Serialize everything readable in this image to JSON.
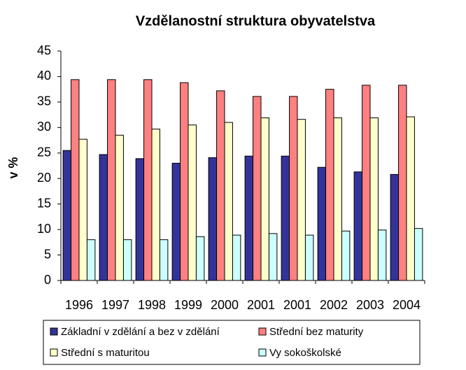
{
  "chart_data": {
    "type": "bar",
    "title": "Vzdělanostní struktura obyvatelstva",
    "y_label": "v %",
    "categories": [
      "1996",
      "1997",
      "1998",
      "1999",
      "2000",
      "2001",
      "2001",
      "2002",
      "2003",
      "2004"
    ],
    "series": [
      {
        "name": "Základní v zdělání a bez v zdělání",
        "color": "#333399",
        "values": [
          25.5,
          24.7,
          23.9,
          23.0,
          24.1,
          24.4,
          24.4,
          22.2,
          21.3,
          20.8
        ]
      },
      {
        "name": "Střední bez maturity",
        "color": "#ff8080",
        "values": [
          39.4,
          39.4,
          39.4,
          38.8,
          37.2,
          36.1,
          36.1,
          37.5,
          38.3,
          38.3
        ]
      },
      {
        "name": "Střední s maturitou",
        "color": "#ffffcc",
        "values": [
          27.7,
          28.5,
          29.7,
          30.5,
          31.0,
          31.9,
          31.6,
          31.9,
          31.9,
          32.1
        ]
      },
      {
        "name": "Vy sokoškolské",
        "color": "#ccffff",
        "values": [
          8.0,
          8.0,
          8.0,
          8.6,
          8.9,
          9.2,
          8.9,
          9.7,
          9.9,
          10.2
        ]
      }
    ],
    "ylim": [
      0,
      45
    ],
    "yticks": [
      0,
      5,
      10,
      15,
      20,
      25,
      30,
      35,
      40,
      45
    ],
    "grid": false
  }
}
